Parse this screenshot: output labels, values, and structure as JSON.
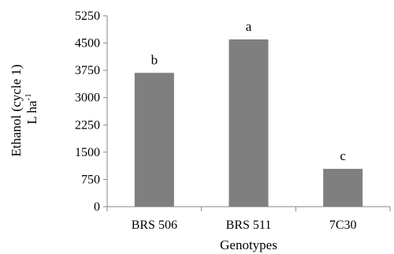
{
  "chart_data": {
    "type": "bar",
    "categories": [
      "BRS 506",
      "BRS 511",
      "7C30"
    ],
    "values": [
      3680,
      4600,
      1040
    ],
    "data_labels": [
      "b",
      "a",
      "c"
    ],
    "xlabel": "Genotypes",
    "ylabel_line1": "Ethanol (cycle 1)",
    "ylabel_line2": "L ha",
    "ylabel_superscript": "-1",
    "ylim": [
      0,
      5250
    ],
    "yticks": [
      "0",
      "750",
      "1500",
      "2250",
      "3000",
      "3750",
      "4500",
      "5250"
    ],
    "grid": false,
    "legend": "none",
    "bar_color": "#7f7f7f",
    "axis_color": "#868686"
  }
}
